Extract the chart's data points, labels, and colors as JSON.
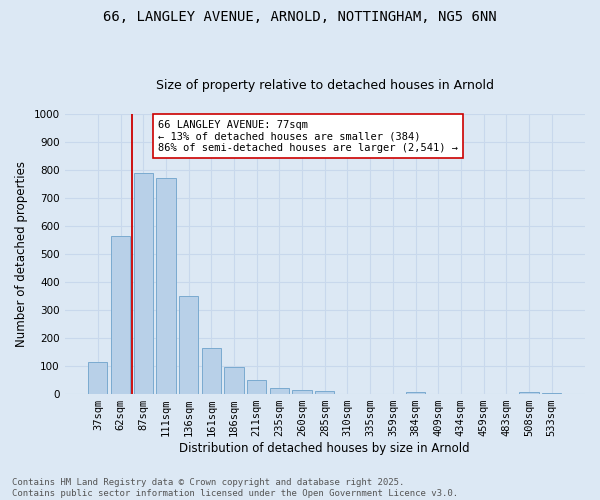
{
  "title_line1": "66, LANGLEY AVENUE, ARNOLD, NOTTINGHAM, NG5 6NN",
  "title_line2": "Size of property relative to detached houses in Arnold",
  "xlabel": "Distribution of detached houses by size in Arnold",
  "ylabel": "Number of detached properties",
  "bar_labels": [
    "37sqm",
    "62sqm",
    "87sqm",
    "111sqm",
    "136sqm",
    "161sqm",
    "186sqm",
    "211sqm",
    "235sqm",
    "260sqm",
    "285sqm",
    "310sqm",
    "335sqm",
    "359sqm",
    "384sqm",
    "409sqm",
    "434sqm",
    "459sqm",
    "483sqm",
    "508sqm",
    "533sqm"
  ],
  "bar_values": [
    115,
    565,
    790,
    770,
    350,
    165,
    98,
    52,
    20,
    13,
    10,
    0,
    0,
    0,
    8,
    0,
    0,
    0,
    0,
    8,
    5
  ],
  "bar_color": "#b8d0e8",
  "bar_edge_color": "#7aaad0",
  "vline_color": "#cc0000",
  "annotation_text": "66 LANGLEY AVENUE: 77sqm\n← 13% of detached houses are smaller (384)\n86% of semi-detached houses are larger (2,541) →",
  "annotation_box_color": "#ffffff",
  "annotation_box_edge": "#cc0000",
  "ylim": [
    0,
    1000
  ],
  "yticks": [
    0,
    100,
    200,
    300,
    400,
    500,
    600,
    700,
    800,
    900,
    1000
  ],
  "grid_color": "#c8d8ec",
  "plot_bg_color": "#dce8f4",
  "fig_bg_color": "#dce8f4",
  "footer_text": "Contains HM Land Registry data © Crown copyright and database right 2025.\nContains public sector information licensed under the Open Government Licence v3.0.",
  "title1_fontsize": 10,
  "title2_fontsize": 9,
  "axis_label_fontsize": 8.5,
  "tick_fontsize": 7.5,
  "annotation_fontsize": 7.5,
  "footer_fontsize": 6.5
}
